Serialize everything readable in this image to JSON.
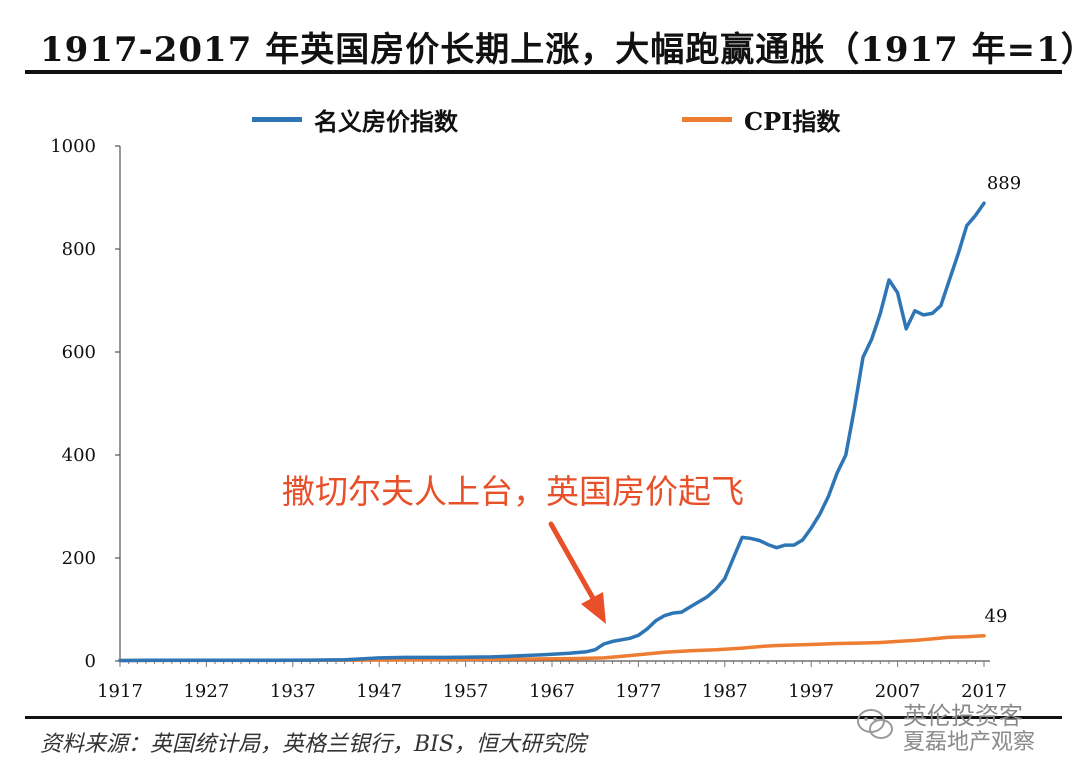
{
  "header": {
    "title": "1917-2017 年英国房价长期上涨，大幅跑赢通胀（1917 年=1）"
  },
  "footer": {
    "source": "资料来源：英国统计局，英格兰银行，BIS，恒大研究院"
  },
  "watermark": {
    "line1": "英伦投资客",
    "line2": "夏磊地产观察"
  },
  "colors": {
    "house": "#2e75b6",
    "cpi": "#ed7d31",
    "annotation": "#e8502a"
  },
  "chart_data": {
    "type": "line",
    "title": "1917-2017 年英国房价长期上涨，大幅跑赢通胀（1917 年=1）",
    "xlabel": "",
    "ylabel": "",
    "xlim": [
      1917,
      2017
    ],
    "ylim": [
      0,
      1000
    ],
    "x_ticks": [
      "1917",
      "1927",
      "1937",
      "1947",
      "1957",
      "1967",
      "1977",
      "1987",
      "1997",
      "2007",
      "2017"
    ],
    "y_ticks": [
      "0",
      "200",
      "400",
      "600",
      "800",
      "1000"
    ],
    "legend_position": "top",
    "annotation": "撒切尔夫人上台，英国房价起飞",
    "series": [
      {
        "name": "名义房价指数",
        "end_label": "889",
        "points": [
          [
            1917,
            1
          ],
          [
            1920,
            1.3
          ],
          [
            1925,
            1.5
          ],
          [
            1930,
            1.6
          ],
          [
            1935,
            1.6
          ],
          [
            1939,
            1.8
          ],
          [
            1943,
            2.5
          ],
          [
            1945,
            4
          ],
          [
            1947,
            6
          ],
          [
            1950,
            7
          ],
          [
            1955,
            7
          ],
          [
            1960,
            8
          ],
          [
            1963,
            10
          ],
          [
            1966,
            12
          ],
          [
            1969,
            15
          ],
          [
            1971,
            18
          ],
          [
            1972,
            22
          ],
          [
            1973,
            33
          ],
          [
            1974,
            38
          ],
          [
            1976,
            44
          ],
          [
            1977,
            50
          ],
          [
            1978,
            62
          ],
          [
            1979,
            78
          ],
          [
            1980,
            88
          ],
          [
            1981,
            93
          ],
          [
            1982,
            95
          ],
          [
            1983,
            105
          ],
          [
            1984,
            115
          ],
          [
            1985,
            125
          ],
          [
            1986,
            140
          ],
          [
            1987,
            160
          ],
          [
            1988,
            200
          ],
          [
            1989,
            240
          ],
          [
            1990,
            238
          ],
          [
            1991,
            234
          ],
          [
            1992,
            226
          ],
          [
            1993,
            220
          ],
          [
            1994,
            225
          ],
          [
            1995,
            225
          ],
          [
            1996,
            235
          ],
          [
            1997,
            258
          ],
          [
            1998,
            285
          ],
          [
            1999,
            320
          ],
          [
            2000,
            365
          ],
          [
            2001,
            400
          ],
          [
            2002,
            490
          ],
          [
            2003,
            590
          ],
          [
            2004,
            625
          ],
          [
            2005,
            675
          ],
          [
            2006,
            740
          ],
          [
            2007,
            715
          ],
          [
            2008,
            645
          ],
          [
            2009,
            680
          ],
          [
            2010,
            672
          ],
          [
            2011,
            675
          ],
          [
            2012,
            690
          ],
          [
            2013,
            740
          ],
          [
            2014,
            790
          ],
          [
            2015,
            845
          ],
          [
            2016,
            865
          ],
          [
            2017,
            889
          ]
        ]
      },
      {
        "name": "CPI指数",
        "end_label": "49",
        "points": [
          [
            1917,
            1
          ],
          [
            1925,
            1.2
          ],
          [
            1935,
            1.1
          ],
          [
            1940,
            1.4
          ],
          [
            1945,
            1.8
          ],
          [
            1950,
            2.2
          ],
          [
            1955,
            2.8
          ],
          [
            1960,
            3.3
          ],
          [
            1965,
            3.9
          ],
          [
            1970,
            4.8
          ],
          [
            1973,
            6
          ],
          [
            1975,
            9
          ],
          [
            1977,
            12
          ],
          [
            1980,
            17
          ],
          [
            1983,
            20
          ],
          [
            1986,
            22
          ],
          [
            1989,
            25
          ],
          [
            1991,
            28
          ],
          [
            1993,
            30
          ],
          [
            1995,
            31
          ],
          [
            1997,
            32
          ],
          [
            2000,
            34
          ],
          [
            2003,
            35
          ],
          [
            2005,
            36
          ],
          [
            2007,
            38
          ],
          [
            2009,
            40
          ],
          [
            2011,
            43
          ],
          [
            2013,
            46
          ],
          [
            2015,
            47
          ],
          [
            2017,
            49
          ]
        ]
      }
    ]
  }
}
